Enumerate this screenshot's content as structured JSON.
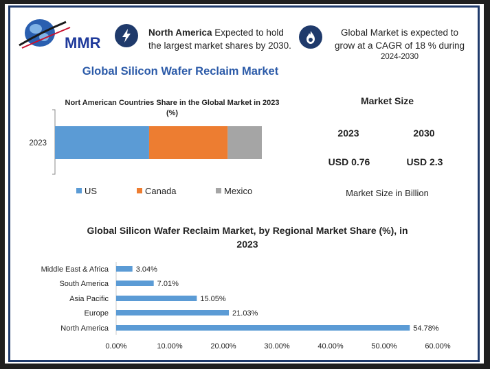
{
  "logo": {
    "text": "MMR"
  },
  "highlights": [
    {
      "icon": "lightning-icon",
      "bold": "North America",
      "text": " Expected to hold the largest market shares by 2030."
    },
    {
      "icon": "flame-icon",
      "line1": "Global Market is expected to grow at a CAGR of 18 % during",
      "line2": "2024-2030"
    }
  ],
  "main_title": "Global Silicon Wafer Reclaim Market",
  "market_size": {
    "title": "Market Size",
    "years": [
      "2023",
      "2030"
    ],
    "values": [
      "USD 0.76",
      "USD 2.3"
    ],
    "unit": "Market Size in Billion"
  },
  "colors": {
    "us": "#5b9bd5",
    "canada": "#ed7d31",
    "mexico": "#a5a5a5",
    "bar": "#5b9bd5",
    "navy": "#1f3a6b",
    "title_blue": "#2b5aa8"
  },
  "chart_data": [
    {
      "type": "bar",
      "orientation": "horizontal",
      "stacked": true,
      "title": "Nort American Countries Share in the Global Market in 2023 (%)",
      "categories": [
        "2023"
      ],
      "series": [
        {
          "name": "US",
          "values": [
            45.5
          ]
        },
        {
          "name": "Canada",
          "values": [
            38.0
          ]
        },
        {
          "name": "Mexico",
          "values": [
            16.5
          ]
        }
      ],
      "legend_position": "bottom",
      "grid": false
    },
    {
      "type": "bar",
      "orientation": "horizontal",
      "title": "Global Silicon Wafer Reclaim Market, by Regional Market Share (%), in 2023",
      "categories": [
        "North America",
        "Europe",
        "Asia Pacific",
        "South America",
        "Middle East & Africa"
      ],
      "values": [
        54.78,
        21.03,
        15.05,
        7.01,
        3.04
      ],
      "data_labels": [
        "54.78%",
        "21.03%",
        "15.05%",
        "7.01%",
        "3.04%"
      ],
      "xlim": [
        0,
        60
      ],
      "xticks": [
        "0.00%",
        "10.00%",
        "20.00%",
        "30.00%",
        "40.00%",
        "50.00%",
        "60.00%"
      ],
      "grid": false
    }
  ]
}
